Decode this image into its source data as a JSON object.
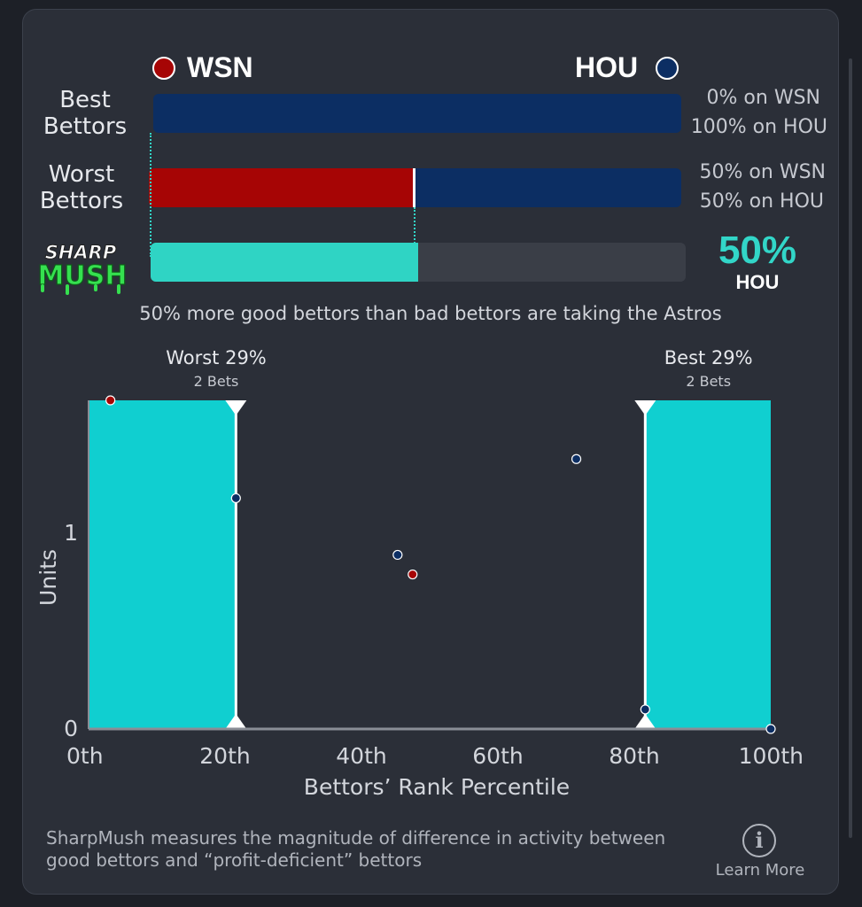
{
  "colors": {
    "wsn": "#a60505",
    "hou": "#0c2e63",
    "accent": "#32d6c8",
    "band": "#10cfd0"
  },
  "header": {
    "away_team": "WSN",
    "home_team": "HOU"
  },
  "rows": {
    "best_label": "Best Bettors",
    "best_away_pct": "0% on WSN",
    "best_home_pct": "100% on HOU",
    "worst_label": "Worst Bettors",
    "worst_away_pct": "50% on WSN",
    "worst_home_pct": "50% on HOU",
    "best_away_share": 0,
    "worst_away_share": 0.5,
    "sharpmush_share": 0.5
  },
  "logo": {
    "line1": "SHARP",
    "line2": "MUSH"
  },
  "sharpmush": {
    "value": "50%",
    "team": "HOU"
  },
  "summary": "50% more good bettors than bad bettors are taking the Astros",
  "chart_data": {
    "type": "scatter",
    "xlabel": "Bettors’ Rank Percentile",
    "ylabel": "Units",
    "xlim": [
      0,
      100
    ],
    "ylim": [
      0,
      1.68
    ],
    "x_ticks": [
      {
        "value": 0,
        "label": "0th"
      },
      {
        "value": 20,
        "label": "20th"
      },
      {
        "value": 40,
        "label": "40th"
      },
      {
        "value": 60,
        "label": "60th"
      },
      {
        "value": 80,
        "label": "80th"
      },
      {
        "value": 100,
        "label": "100th"
      }
    ],
    "y_ticks": [
      {
        "value": 0,
        "label": "0"
      },
      {
        "value": 1,
        "label": "1"
      }
    ],
    "bands": [
      {
        "from": 0,
        "to": 21.6,
        "title": "Worst 29%",
        "subtitle": "2 Bets",
        "title_x": 10
      },
      {
        "from": 81.6,
        "to": 100,
        "title": "Best 29%",
        "subtitle": "2 Bets",
        "title_x": 91
      }
    ],
    "series": [
      {
        "name": "WSN",
        "color": "#a60505",
        "points": [
          [
            3.2,
            1.68
          ],
          [
            47.5,
            0.79
          ]
        ]
      },
      {
        "name": "HOU",
        "color": "#0c2e63",
        "points": [
          [
            21.6,
            1.18
          ],
          [
            45.3,
            0.89
          ],
          [
            71.5,
            1.38
          ],
          [
            81.6,
            0.1
          ],
          [
            100,
            0.0
          ]
        ]
      }
    ],
    "grid": false
  },
  "footer": {
    "text": "SharpMush measures the magnitude of difference in activity between good bettors and “profit-deficient” bettors",
    "learn_more": "Learn More",
    "info_glyph": "i"
  }
}
